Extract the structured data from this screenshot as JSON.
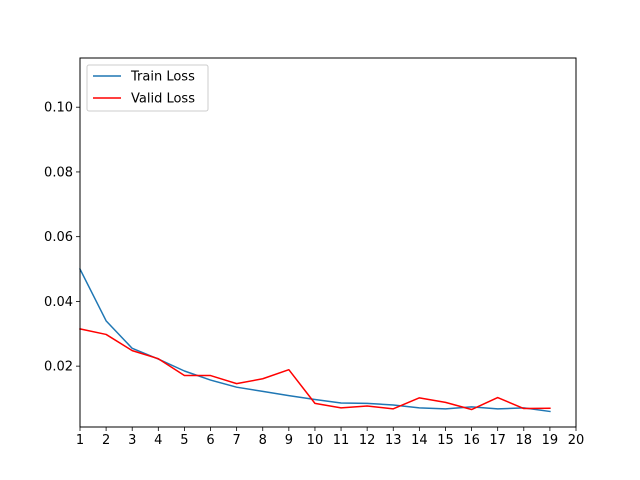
{
  "chart_data": {
    "type": "line",
    "title": "",
    "xlabel": "",
    "ylabel": "",
    "x": [
      1,
      2,
      3,
      4,
      5,
      6,
      7,
      8,
      9,
      10,
      11,
      12,
      13,
      14,
      15,
      16,
      17,
      18,
      19
    ],
    "xlim": [
      1,
      20
    ],
    "ylim": [
      0.0012,
      0.1152
    ],
    "xticks": [
      1,
      2,
      3,
      4,
      5,
      6,
      7,
      8,
      9,
      10,
      11,
      12,
      13,
      14,
      15,
      16,
      17,
      18,
      19,
      20
    ],
    "yticks": [
      0.02,
      0.04,
      0.06,
      0.08,
      0.1
    ],
    "ytick_labels": [
      "0.02",
      "0.04",
      "0.06",
      "0.08",
      "0.10"
    ],
    "grid": false,
    "legend": "top-left",
    "series": [
      {
        "name": "Train Loss",
        "color": "#1f77b4",
        "values": [
          0.05,
          0.034,
          0.0255,
          0.0222,
          0.0185,
          0.0157,
          0.0135,
          0.0122,
          0.0109,
          0.0097,
          0.0086,
          0.0085,
          0.008,
          0.0071,
          0.0068,
          0.0074,
          0.0068,
          0.0071,
          0.006
        ]
      },
      {
        "name": "Valid Loss",
        "color": "#ff0000",
        "values": [
          0.0315,
          0.0298,
          0.0248,
          0.0223,
          0.0171,
          0.0171,
          0.0146,
          0.0161,
          0.0189,
          0.0085,
          0.0071,
          0.0077,
          0.0068,
          0.0102,
          0.0088,
          0.0066,
          0.0103,
          0.0069,
          0.007
        ]
      }
    ]
  }
}
